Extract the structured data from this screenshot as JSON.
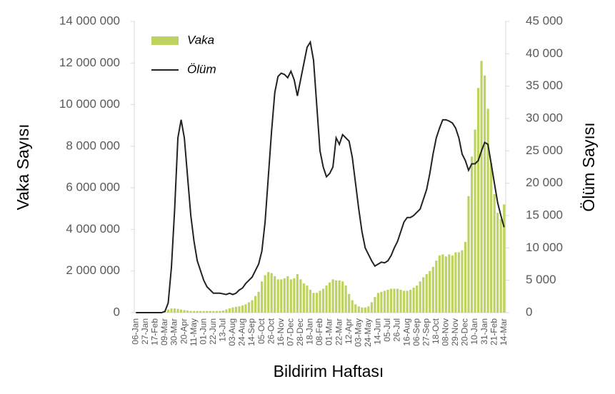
{
  "chart_data": {
    "type": "bar",
    "x_label": "Bildirim Haftası",
    "y_label": "Vaka Sayısı",
    "y2_label": "Ölüm Sayısı",
    "categories": [
      "06-Jan",
      null,
      null,
      "27-Jan",
      null,
      null,
      "17-Feb",
      null,
      null,
      "09-Mar",
      null,
      null,
      "30-Mar",
      null,
      null,
      "20-Apr",
      null,
      null,
      "11-May",
      null,
      null,
      "01-Jun",
      null,
      null,
      "22-Jun",
      null,
      null,
      "13-Jul",
      null,
      null,
      "03-Aug",
      null,
      null,
      "24-Aug",
      null,
      null,
      "14-Sep",
      null,
      null,
      "05-Oct",
      null,
      null,
      "26-Oct",
      null,
      null,
      "16-Nov",
      null,
      null,
      "07-Dec",
      null,
      null,
      "28-Dec",
      null,
      null,
      "18-Jan",
      null,
      null,
      "08-Feb",
      null,
      null,
      "01-Mar",
      null,
      null,
      "22-Mar",
      null,
      null,
      "12-Apr",
      null,
      null,
      "03-May",
      null,
      null,
      "24-May",
      null,
      null,
      "14-Jun",
      null,
      null,
      "05-Jul",
      null,
      null,
      "26-Jul",
      null,
      null,
      "16-Aug",
      null,
      null,
      "06-Sep",
      null,
      null,
      "27-Sep",
      null,
      null,
      "18-Oct",
      null,
      null,
      "08-Nov",
      null,
      null,
      "29-Nov",
      null,
      null,
      "20-Dec",
      null,
      null,
      "10-Jan",
      null,
      null,
      "31-Jan",
      null,
      null,
      "21-Feb",
      null,
      null,
      "14-Mar"
    ],
    "series": [
      {
        "name": "Vaka",
        "type": "bar",
        "color": "#bcd35f",
        "values": [
          0,
          0,
          0,
          0,
          0,
          0,
          0,
          0,
          0,
          50000,
          150000,
          200000,
          200000,
          180000,
          150000,
          120000,
          100000,
          80000,
          80000,
          80000,
          80000,
          80000,
          80000,
          80000,
          80000,
          80000,
          80000,
          100000,
          150000,
          200000,
          250000,
          280000,
          300000,
          350000,
          400000,
          500000,
          600000,
          800000,
          1000000,
          1500000,
          1800000,
          1950000,
          1900000,
          1750000,
          1600000,
          1600000,
          1650000,
          1750000,
          1600000,
          1650000,
          1850000,
          1600000,
          1400000,
          1300000,
          1100000,
          950000,
          950000,
          1050000,
          1150000,
          1300000,
          1450000,
          1600000,
          1550000,
          1550000,
          1500000,
          1300000,
          900000,
          600000,
          400000,
          300000,
          250000,
          250000,
          300000,
          500000,
          750000,
          950000,
          1000000,
          1050000,
          1100000,
          1150000,
          1150000,
          1150000,
          1100000,
          1050000,
          1050000,
          1100000,
          1200000,
          1300000,
          1500000,
          1700000,
          1850000,
          2000000,
          2200000,
          2500000,
          2750000,
          2800000,
          2700000,
          2800000,
          2750000,
          2900000,
          2900000,
          3000000,
          3400000,
          5600000,
          7500000,
          8800000,
          10800000,
          12100000,
          11400000,
          9800000,
          7200000,
          5700000,
          4800000,
          4500000,
          5200000
        ]
      },
      {
        "name": "Ölüm",
        "type": "line",
        "axis": "y2",
        "color": "#222222",
        "values": [
          0,
          0,
          0,
          0,
          0,
          0,
          0,
          0,
          0,
          200,
          1500,
          7000,
          16000,
          27000,
          29800,
          27000,
          21000,
          15000,
          11000,
          8000,
          6500,
          5000,
          4000,
          3500,
          3000,
          3000,
          3000,
          2900,
          2800,
          3000,
          2800,
          3000,
          3500,
          3800,
          4500,
          5000,
          5500,
          6500,
          7500,
          9500,
          14000,
          21000,
          28000,
          34000,
          36500,
          37000,
          36800,
          36300,
          37300,
          36000,
          33500,
          36000,
          38500,
          41000,
          41800,
          39000,
          32000,
          25000,
          22500,
          21000,
          21500,
          22500,
          27000,
          26000,
          27500,
          27000,
          26500,
          24000,
          20000,
          16000,
          12500,
          10000,
          9000,
          8000,
          7200,
          7500,
          7800,
          7700,
          8000,
          8800,
          10000,
          11000,
          12500,
          14000,
          14700,
          14700,
          15000,
          15500,
          16000,
          17500,
          19000,
          21500,
          24500,
          27000,
          28500,
          29800,
          29800,
          29600,
          29300,
          28500,
          27000,
          24500,
          23500,
          22000,
          23000,
          23000,
          23500,
          25000,
          26300,
          26000,
          23000,
          20000,
          17000,
          15000,
          13200
        ]
      }
    ],
    "ylim": [
      0,
      14000000
    ],
    "yticks": [
      0,
      {
        "value": 2000000,
        "label": "2 000 000"
      },
      {
        "value": 4000000,
        "label": "4 000 000"
      },
      {
        "value": 6000000,
        "label": "6 000 000"
      },
      {
        "value": 8000000,
        "label": "8 000 000"
      },
      {
        "value": 10000000,
        "label": "10 000 000"
      },
      {
        "value": 12000000,
        "label": "12 000 000"
      },
      {
        "value": 14000000,
        "label": "14 000 000"
      }
    ],
    "y2lim": [
      0,
      45000
    ],
    "y2ticks": [
      0,
      {
        "value": 5000,
        "label": "5 000"
      },
      {
        "value": 10000,
        "label": "10 000"
      },
      {
        "value": 15000,
        "label": "15 000"
      },
      {
        "value": 20000,
        "label": "20 000"
      },
      {
        "value": 25000,
        "label": "25 000"
      },
      {
        "value": 30000,
        "label": "30 000"
      },
      {
        "value": 35000,
        "label": "35 000"
      },
      {
        "value": 40000,
        "label": "40 000"
      },
      {
        "value": 45000,
        "label": "45 000"
      }
    ],
    "grid": false
  }
}
